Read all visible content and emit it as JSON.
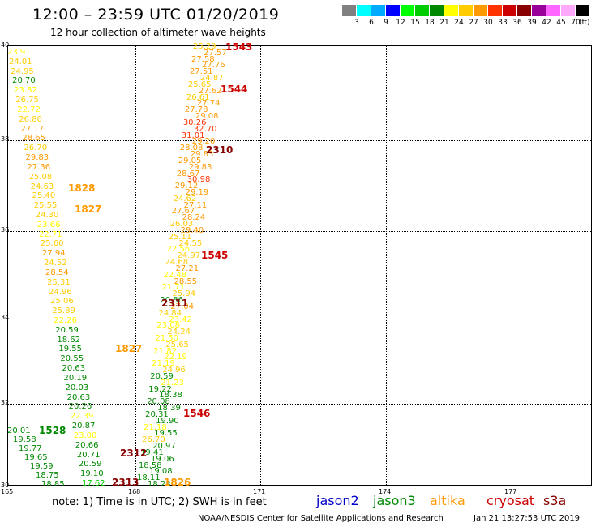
{
  "header": {
    "title": "12:00 – 23:59 UTC 01/20/2019",
    "subtitle": "12 hour collection of altimeter wave heights"
  },
  "colorbar": {
    "unit": "(ft)",
    "swatches": [
      "#808080",
      "#00ffff",
      "#00aaff",
      "#0000ff",
      "#00ff00",
      "#00cc00",
      "#008800",
      "#ffff00",
      "#ffcc00",
      "#ff9900",
      "#ff3300",
      "#cc0000",
      "#880000",
      "#990099",
      "#ff66ff",
      "#ffaaff",
      "#000000"
    ],
    "labels": [
      "3",
      "6",
      "9",
      "12",
      "15",
      "18",
      "21",
      "24",
      "27",
      "30",
      "33",
      "36",
      "39",
      "42",
      "45",
      "70"
    ]
  },
  "axes": {
    "lon_ticks": [
      "165",
      "168",
      "171",
      "174",
      "177"
    ],
    "lat_ticks": [
      "40",
      "38",
      "36",
      "34",
      "32",
      "30"
    ]
  },
  "observations": {
    "altika": {
      "color_key": "altika",
      "values": [
        "23.91",
        "24.01",
        "24.95",
        "20.70",
        "23.82",
        "26.75",
        "22.72",
        "26.80",
        "27.17",
        "28.65",
        "26.70",
        "29.83",
        "27.36",
        "25.08",
        "24.63",
        "25.40",
        "25.55",
        "24.30",
        "23.66",
        "22.71",
        "25.60",
        "27.94",
        "24.52",
        "28.54",
        "25.31",
        "24.96",
        "25.06",
        "25.89",
        "22.26",
        "20.59",
        "18.62",
        "19.55",
        "20.55",
        "20.63",
        "20.19",
        "20.03",
        "20.63",
        "20.26",
        "22.39",
        "20.87",
        "23.00",
        "20.66",
        "20.71",
        "20.59",
        "19.10",
        "17.62"
      ]
    },
    "track": {
      "values": [
        "25.29",
        "27.57",
        "27.58",
        "27.76",
        "27.51",
        "24.87",
        "25.65",
        "27.62",
        "26.61",
        "27.74",
        "27.78",
        "29.08",
        "30.26",
        "32.70",
        "31.01",
        "29.20",
        "28.08",
        "29.83",
        "29.05",
        "29.83",
        "28.67",
        "30.98",
        "29.12",
        "29.19",
        "24.62",
        "27.11",
        "27.67",
        "28.24",
        "26.03",
        "29.40",
        "25.11",
        "24.55",
        "22.56",
        "24.97",
        "24.68",
        "27.21",
        "22.48",
        "28.55",
        "21.71",
        "25.94",
        "20.86",
        "27.04",
        "24.84",
        "23.42",
        "23.08",
        "24.24",
        "21.50",
        "25.65",
        "21.82",
        "22.19",
        "21.19",
        "24.96",
        "20.59",
        "21.23",
        "19.22",
        "18.38",
        "20.08",
        "18.39",
        "20.31",
        "19.90",
        "21.18",
        "19.55",
        "26.70",
        "20.97",
        "19.41",
        "19.06",
        "18.58",
        "19.08",
        "18.11",
        "18.28"
      ]
    },
    "jason3": {
      "values": [
        "20.01",
        "19.58",
        "19.77",
        "19.65",
        "19.59",
        "18.75",
        "18.85"
      ]
    }
  },
  "passes": [
    {
      "id": "1543",
      "sat": "cryosat"
    },
    {
      "id": "1544",
      "sat": "cryosat"
    },
    {
      "id": "2310",
      "sat": "s3a"
    },
    {
      "id": "1828",
      "sat": "altika"
    },
    {
      "id": "1827",
      "sat": "altika"
    },
    {
      "id": "1545",
      "sat": "cryosat"
    },
    {
      "id": "2311",
      "sat": "s3a"
    },
    {
      "id": "1827",
      "sat": "altika"
    },
    {
      "id": "1546",
      "sat": "cryosat"
    },
    {
      "id": "1528",
      "sat": "jason3"
    },
    {
      "id": "2312",
      "sat": "s3a"
    },
    {
      "id": "2313",
      "sat": "s3a"
    },
    {
      "id": "1826",
      "sat": "altika"
    }
  ],
  "footer": {
    "note": "note: 1) Time is in UTC; 2) SWH is in feet",
    "satellites": [
      {
        "name": "jason2",
        "color": "#0000cc"
      },
      {
        "name": "jason3",
        "color": "#008800"
      },
      {
        "name": "altika",
        "color": "#ff9900"
      },
      {
        "name": "cryosat",
        "color": "#cc0000"
      },
      {
        "name": "s3a",
        "color": "#880000"
      }
    ],
    "credit": "NOAA/NESDIS Center for Satellite Applications and Research",
    "timestamp": "Jan 21 13:27:53 UTC 2019"
  }
}
